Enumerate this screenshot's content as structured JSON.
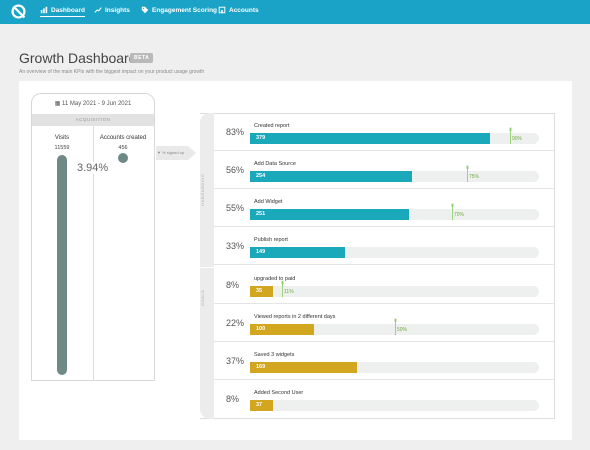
{
  "nav": {
    "items": [
      {
        "label": "Dashboard",
        "icon": "chart-bar-icon",
        "active": true
      },
      {
        "label": "Insights",
        "icon": "trend-line-icon",
        "active": false
      },
      {
        "label": "Engagement Scoring",
        "icon": "tag-icon",
        "active": false
      },
      {
        "label": "Accounts",
        "icon": "building-icon",
        "active": false
      }
    ]
  },
  "page": {
    "title": "Growth Dashboard",
    "badge": "BETA",
    "subtitle": "An overview of the main KPIs with the biggest impact on your product usage growth"
  },
  "acquisition": {
    "date_range": "11 May 2021 - 9 Jun 2021",
    "section_label": "ACQUISITION",
    "visits_label": "Visits",
    "visits_value": "11559",
    "accounts_label": "Accounts created",
    "accounts_value": "456",
    "conversion_rate": "3.94%"
  },
  "conversion_label": "% signed up",
  "funnel": {
    "onboarding_label": "ONBOARDING",
    "goals_label": "GOALS",
    "stages": [
      {
        "name": "Created report",
        "pct_label": "83%",
        "fraction": 0.83,
        "count": "379",
        "benchmark": "90%",
        "bench_fraction": 0.9,
        "group": "onb"
      },
      {
        "name": "Add Data Source",
        "pct_label": "56%",
        "fraction": 0.56,
        "count": "254",
        "benchmark": "75%",
        "bench_fraction": 0.75,
        "group": "onb"
      },
      {
        "name": "Add Widget",
        "pct_label": "55%",
        "fraction": 0.55,
        "count": "251",
        "benchmark": "70%",
        "bench_fraction": 0.7,
        "group": "onb"
      },
      {
        "name": "Publish report",
        "pct_label": "33%",
        "fraction": 0.33,
        "count": "149",
        "benchmark": "",
        "bench_fraction": null,
        "group": "onb"
      },
      {
        "name": "upgraded to paid",
        "pct_label": "8%",
        "fraction": 0.08,
        "count": "35",
        "benchmark": "11%",
        "bench_fraction": 0.11,
        "group": "goal"
      },
      {
        "name": "Viewed reports in 2 different days",
        "pct_label": "22%",
        "fraction": 0.22,
        "count": "100",
        "benchmark": "50%",
        "bench_fraction": 0.5,
        "group": "goal"
      },
      {
        "name": "Saved 3 widgets",
        "pct_label": "37%",
        "fraction": 0.37,
        "count": "169",
        "benchmark": "",
        "bench_fraction": null,
        "group": "goal"
      },
      {
        "name": "Added Second User",
        "pct_label": "8%",
        "fraction": 0.08,
        "count": "37",
        "benchmark": "",
        "bench_fraction": null,
        "group": "goal"
      }
    ],
    "benchmark_tick": "|||"
  },
  "colors": {
    "topbar": "#1aa3c6",
    "onboarding_bar": "#1aa9bb",
    "goal_bar": "#d2a71f",
    "acquisition_bar": "#6f8987",
    "benchmark": "#6fae3a"
  }
}
